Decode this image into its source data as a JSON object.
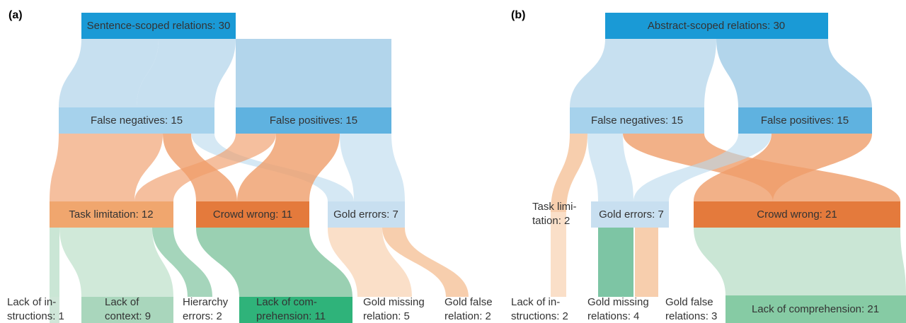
{
  "panels": [
    {
      "tag": "(a)",
      "nodes": [
        {
          "label": [
            "Sentence-scoped relations: 30"
          ]
        },
        {
          "label": [
            "False negatives: 15"
          ]
        },
        {
          "label": [
            "False positives: 15"
          ]
        },
        {
          "label": [
            "Task limitation: 12"
          ]
        },
        {
          "label": [
            "Crowd wrong: 11"
          ]
        },
        {
          "label": [
            "Gold errors: 7"
          ]
        },
        {
          "label": [
            "Lack of in-",
            "structions: 1"
          ]
        },
        {
          "label": [
            "Lack of",
            "context: 9"
          ]
        },
        {
          "label": [
            "Hierarchy",
            "errors: 2"
          ]
        },
        {
          "label": [
            "Lack of com-",
            "prehension: 11"
          ]
        },
        {
          "label": [
            "Gold missing",
            "relation: 5"
          ]
        },
        {
          "label": [
            "Gold false",
            "relation: 2"
          ]
        }
      ]
    },
    {
      "tag": "(b)",
      "nodes": [
        {
          "label": [
            "Abstract-scoped relations: 30"
          ]
        },
        {
          "label": [
            "False negatives: 15"
          ]
        },
        {
          "label": [
            "False positives: 15"
          ]
        },
        {
          "label": [
            "Task limi-",
            "tation: 2"
          ]
        },
        {
          "label": [
            "Gold errors: 7"
          ]
        },
        {
          "label": [
            "Crowd wrong: 21"
          ]
        },
        {
          "label": [
            "Lack of in-",
            "structions: 2"
          ]
        },
        {
          "label": [
            "Gold missing",
            "relations: 4"
          ]
        },
        {
          "label": [
            "Gold false",
            "relations: 3"
          ]
        },
        {
          "label": [
            "Lack of comprehension: 21"
          ]
        }
      ]
    }
  ]
}
